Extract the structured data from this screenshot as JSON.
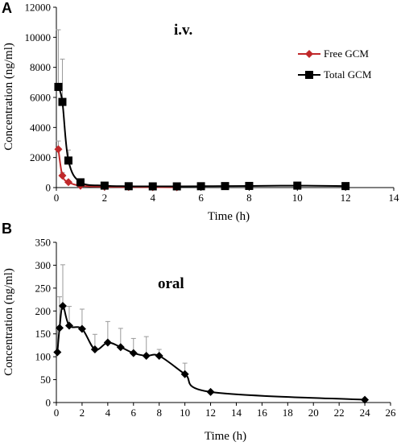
{
  "chart_data": [
    {
      "panel": "A",
      "type": "line",
      "annotation": "i.v.",
      "xlabel": "Time (h)",
      "ylabel": "Concentration (ng/ml)",
      "xlim": [
        0,
        14
      ],
      "ylim": [
        0,
        12000
      ],
      "xticks": [
        0,
        2,
        4,
        6,
        8,
        10,
        12,
        14
      ],
      "yticks": [
        0,
        2000,
        4000,
        6000,
        8000,
        10000,
        12000
      ],
      "legend_position": "top-right",
      "series": [
        {
          "name": "Free GCM",
          "color": "#c0282a",
          "marker": "diamond",
          "x": [
            0.083,
            0.25,
            0.5,
            1,
            2,
            3,
            4,
            5
          ],
          "y": [
            2550,
            800,
            360,
            120,
            60,
            40,
            30,
            20
          ],
          "err": [
            550,
            200,
            0,
            0,
            0,
            0,
            0,
            0
          ]
        },
        {
          "name": "Total GCM",
          "color": "#000000",
          "marker": "square",
          "x": [
            0.083,
            0.25,
            0.5,
            1,
            2,
            3,
            4,
            5,
            6,
            7,
            8,
            10,
            12
          ],
          "y": [
            6700,
            5700,
            1800,
            350,
            130,
            90,
            80,
            80,
            90,
            100,
            110,
            130,
            100
          ],
          "err": [
            3800,
            2850,
            700,
            150,
            0,
            0,
            0,
            0,
            0,
            0,
            0,
            0,
            0
          ]
        }
      ]
    },
    {
      "panel": "B",
      "type": "line",
      "annotation": "oral",
      "xlabel": "Time (h)",
      "ylabel": "Concentration (ng/ml)",
      "xlim": [
        0,
        26
      ],
      "ylim": [
        0,
        350
      ],
      "xticks": [
        0,
        2,
        4,
        6,
        8,
        10,
        12,
        14,
        16,
        18,
        20,
        22,
        24,
        26
      ],
      "yticks": [
        0,
        50,
        100,
        150,
        200,
        250,
        300,
        350
      ],
      "series": [
        {
          "name": "",
          "color": "#000000",
          "marker": "diamond",
          "x": [
            0.083,
            0.25,
            0.5,
            1,
            2,
            3,
            4,
            5,
            6,
            7,
            8,
            10,
            12,
            24
          ],
          "y": [
            110,
            163,
            211,
            168,
            161,
            116,
            131,
            121,
            108,
            102,
            102,
            62,
            23,
            6
          ],
          "err": [
            50,
            68,
            90,
            42,
            43,
            33,
            46,
            41,
            32,
            42,
            14,
            24,
            0,
            0
          ]
        }
      ]
    }
  ]
}
